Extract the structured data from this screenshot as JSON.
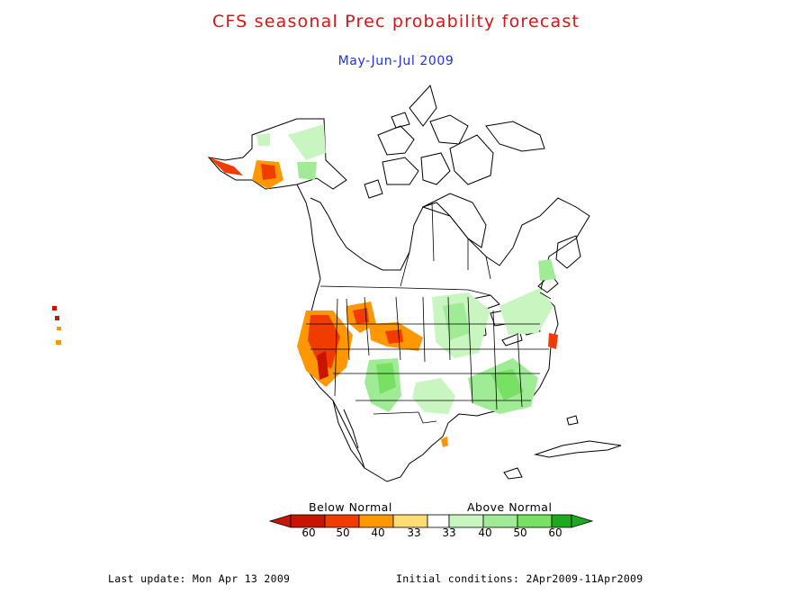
{
  "title": "CFS seasonal Prec probability forecast",
  "subtitle": "May-Jun-Jul 2009",
  "legend": {
    "below_label": "Below Normal",
    "above_label": "Above Normal",
    "tick_labels": [
      "60",
      "50",
      "40",
      "33",
      "33",
      "40",
      "50",
      "60"
    ],
    "colors": {
      "below_60": "#c81400",
      "below_50": "#f03c00",
      "below_40": "#ff9800",
      "below_33": "#ffdc78",
      "normal": "#ffffff",
      "above_33": "#c8f5c0",
      "above_40": "#a0eb96",
      "above_50": "#78e164",
      "above_60": "#1eaa1e"
    }
  },
  "footer": {
    "last_update": "Last update: Mon Apr 13 2009",
    "initial_conditions": "Initial conditions: 2Apr2009-11Apr2009"
  }
}
